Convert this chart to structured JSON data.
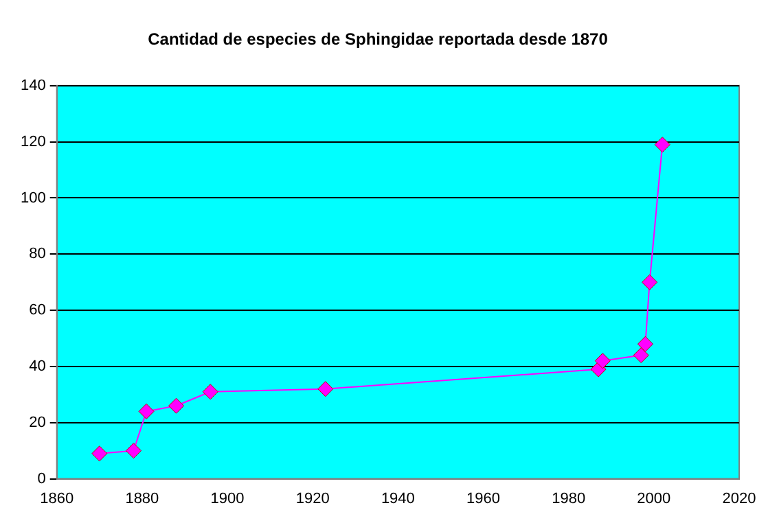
{
  "chart_data": {
    "type": "line",
    "title": "Cantidad de especies de Sphingidae reportada desde 1870",
    "x": [
      1870,
      1878,
      1881,
      1888,
      1896,
      1923,
      1987,
      1988,
      1997,
      1998,
      1999,
      2002
    ],
    "series": [
      {
        "color": "#ff00ff",
        "values": [
          9,
          10,
          24,
          26,
          31,
          32,
          39,
          42,
          44,
          48,
          70,
          119
        ]
      }
    ],
    "xlim": [
      1860,
      2020
    ],
    "xticks": [
      1860,
      1880,
      1900,
      1920,
      1940,
      1960,
      1980,
      2000,
      2020
    ],
    "ylim": [
      0,
      140
    ],
    "yticks": [
      0,
      20,
      40,
      60,
      80,
      100,
      120,
      140
    ],
    "grid": "y",
    "legend": false,
    "marker": "diamond",
    "line_style": "solid"
  }
}
